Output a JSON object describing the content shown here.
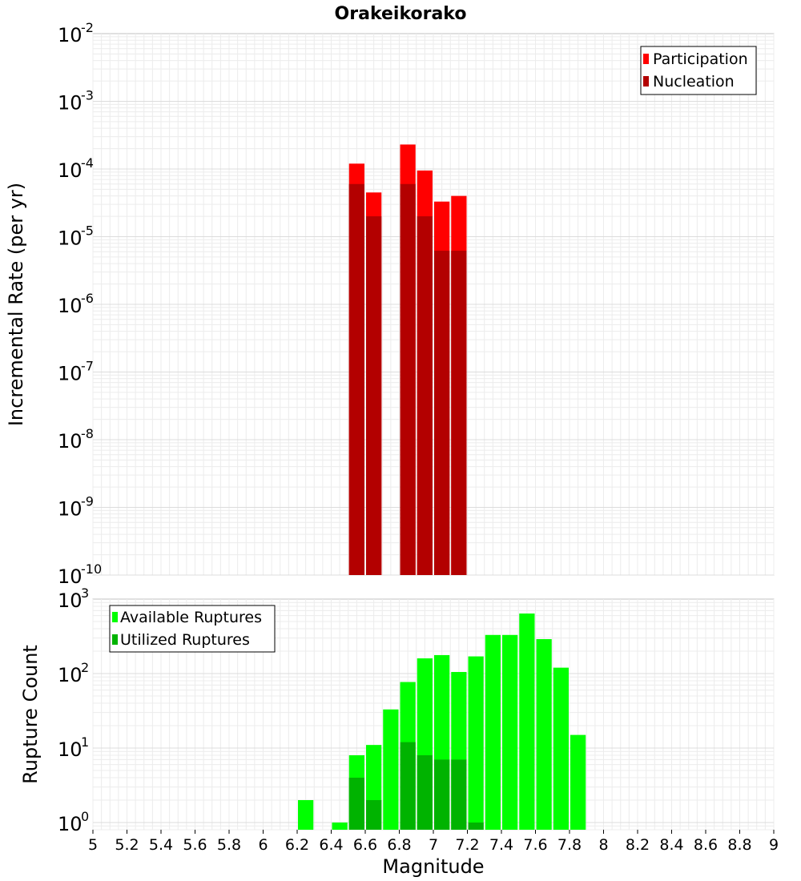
{
  "chart_data": [
    {
      "type": "bar",
      "title": "Orakeikorako",
      "xlabel": "",
      "ylabel": "Incremental Rate (per yr)",
      "xlim": [
        5,
        9
      ],
      "ylim": [
        1e-10,
        0.01
      ],
      "yscale": "log",
      "grid": true,
      "legend_position": "top-right",
      "yticks": [
        {
          "base": "10",
          "exp": "-2",
          "value": 0.01
        },
        {
          "base": "10",
          "exp": "-3",
          "value": 0.001
        },
        {
          "base": "10",
          "exp": "-4",
          "value": 0.0001
        },
        {
          "base": "10",
          "exp": "-5",
          "value": 1e-05
        },
        {
          "base": "10",
          "exp": "-6",
          "value": 1e-06
        },
        {
          "base": "10",
          "exp": "-7",
          "value": 1e-07
        },
        {
          "base": "10",
          "exp": "-8",
          "value": 1e-08
        },
        {
          "base": "10",
          "exp": "-9",
          "value": 1e-09
        },
        {
          "base": "10",
          "exp": "-10",
          "value": 1e-10
        }
      ],
      "x": [
        6.55,
        6.65,
        6.85,
        6.95,
        7.05,
        7.15
      ],
      "series": [
        {
          "name": "Participation",
          "color": "#ff0000",
          "values": [
            0.00012,
            4.5e-05,
            0.00023,
            9.5e-05,
            3.3e-05,
            4e-05
          ]
        },
        {
          "name": "Nucleation",
          "color": "#b30000",
          "values": [
            6e-05,
            2e-05,
            6e-05,
            2e-05,
            6.2e-06,
            6.2e-06
          ]
        }
      ]
    },
    {
      "type": "bar",
      "title": "",
      "xlabel": "Magnitude",
      "ylabel": "Rupture Count",
      "xlim": [
        5,
        9
      ],
      "ylim": [
        0.8,
        1000
      ],
      "yscale": "log",
      "grid": true,
      "legend_position": "top-left",
      "yticks": [
        {
          "base": "10",
          "exp": "3",
          "value": 1000
        },
        {
          "base": "10",
          "exp": "2",
          "value": 100
        },
        {
          "base": "10",
          "exp": "1",
          "value": 10
        },
        {
          "base": "10",
          "exp": "0",
          "value": 1
        }
      ],
      "xticks": [
        "5",
        "5.2",
        "5.4",
        "5.6",
        "5.8",
        "6",
        "6.2",
        "6.4",
        "6.6",
        "6.8",
        "7",
        "7.2",
        "7.4",
        "7.6",
        "7.8",
        "8",
        "8.2",
        "8.4",
        "8.6",
        "8.8",
        "9"
      ],
      "series": [
        {
          "name": "Available Ruptures",
          "color": "#00ff00",
          "x": [
            6.25,
            6.45,
            6.55,
            6.65,
            6.75,
            6.85,
            6.95,
            7.05,
            7.15,
            7.25,
            7.35,
            7.45,
            7.55,
            7.65,
            7.75,
            7.85
          ],
          "values": [
            2,
            1,
            8,
            11,
            33,
            77,
            160,
            177,
            105,
            170,
            330,
            330,
            640,
            290,
            120,
            15
          ]
        },
        {
          "name": "Utilized Ruptures",
          "color": "#00b300",
          "x": [
            6.55,
            6.65,
            6.85,
            6.95,
            7.05,
            7.15,
            7.25
          ],
          "values": [
            4,
            2,
            12,
            8,
            7,
            7,
            1
          ]
        }
      ]
    }
  ]
}
